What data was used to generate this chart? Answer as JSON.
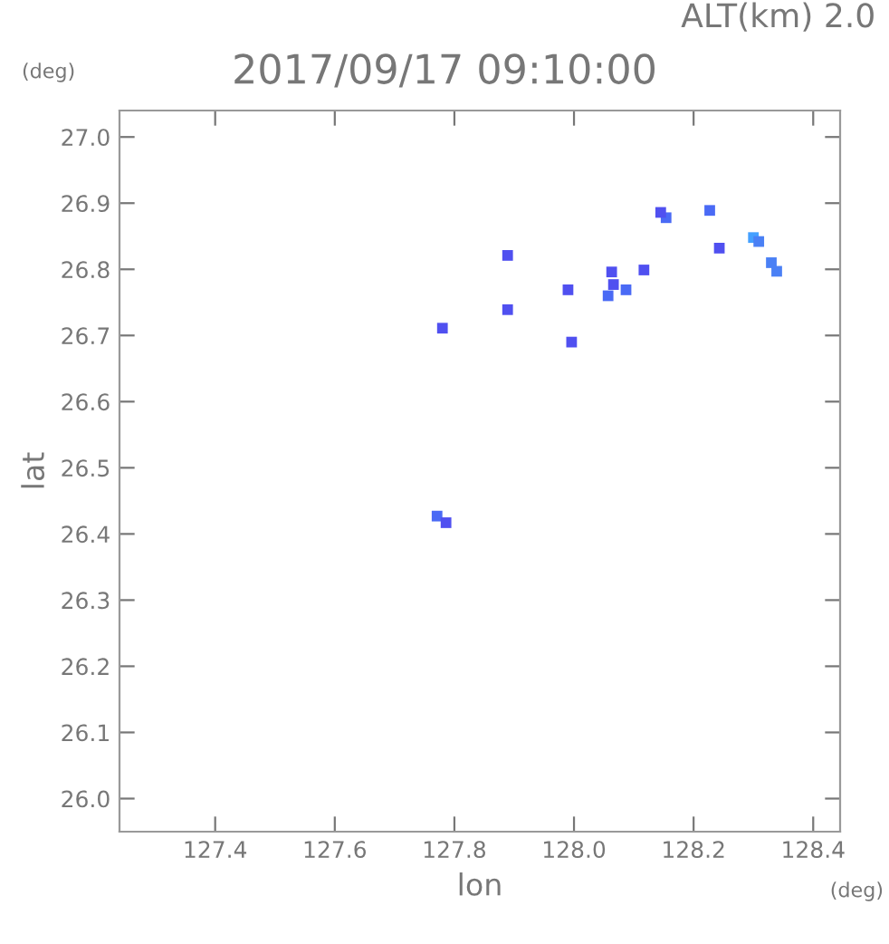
{
  "chart_data": {
    "type": "scatter",
    "title": "2017/09/17 09:10:00",
    "subtitle": "ALT(km) 2.0",
    "xlabel": "lon",
    "ylabel": "lat",
    "annotations": [
      "(deg)",
      "(deg)"
    ],
    "x": [
      127.78,
      127.771,
      127.786,
      127.889,
      127.889,
      127.99,
      127.996,
      128.066,
      128.063,
      128.057,
      128.087,
      128.117,
      128.154,
      128.145,
      128.227,
      128.243,
      128.3,
      128.309,
      128.33,
      128.339
    ],
    "values": [
      26.711,
      26.427,
      26.417,
      26.821,
      26.739,
      26.769,
      26.69,
      26.777,
      26.796,
      26.76,
      26.769,
      26.799,
      26.878,
      26.886,
      26.889,
      26.832,
      26.848,
      26.842,
      26.81,
      26.797
    ],
    "colors": [
      "#5050f0",
      "#4a6af5",
      "#5050f0",
      "#5050f0",
      "#5050f0",
      "#5050f0",
      "#5050f0",
      "#5050f0",
      "#5050f0",
      "#4a6af5",
      "#4a6af5",
      "#5050f0",
      "#4a6af5",
      "#5050f0",
      "#4a6af5",
      "#5050f0",
      "#44a0ff",
      "#4a80f5",
      "#4a80f5",
      "#4a80f5"
    ],
    "marker": "square",
    "xlim": [
      127.24,
      128.445
    ],
    "ylim": [
      25.95,
      27.04
    ],
    "xticks": [
      127.4,
      127.6,
      127.8,
      {
        "value": 128,
        "label": "128.0"
      },
      128.2,
      128.4
    ],
    "yticks": [
      {
        "value": 26,
        "label": "26.0"
      },
      26.1,
      26.2,
      26.3,
      26.4,
      26.5,
      26.6,
      26.7,
      26.8,
      26.9,
      {
        "value": 27,
        "label": "27.0"
      }
    ],
    "grid": false
  }
}
